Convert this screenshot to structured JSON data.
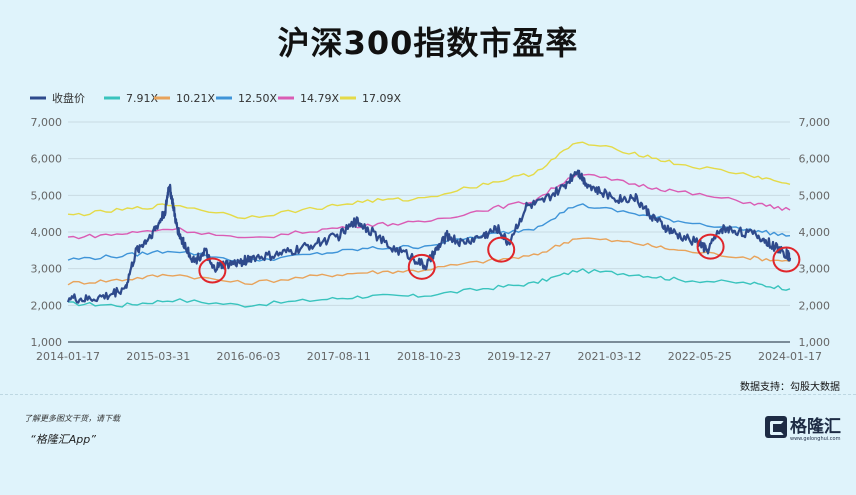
{
  "title": "沪深300指数市盈率",
  "source": "数据支持：勾股大数据",
  "promo_line1": "了解更多图文干货，请下载",
  "promo_line2": "“格隆汇App”",
  "logo": {
    "name": "格隆汇",
    "sub": "www.gelonghui.com"
  },
  "chart_data": {
    "type": "line",
    "ylim": [
      1000,
      7000
    ],
    "yticks": [
      "1,000",
      "2,000",
      "3,000",
      "4,000",
      "5,000",
      "6,000",
      "7,000"
    ],
    "xticks": [
      "2014-01-17",
      "2015-03-31",
      "2016-06-03",
      "2017-08-11",
      "2018-10-23",
      "2019-12-27",
      "2021-03-12",
      "2022-05-25",
      "2024-01-17"
    ],
    "xlim": [
      2014.05,
      2024.05
    ],
    "legend_position": "top-left",
    "grid": true,
    "colors": {
      "收盘价": "#2e4a8c",
      "7.91X": "#39c3bd",
      "10.21X": "#e8a35b",
      "12.50X": "#3f94d8",
      "14.79X": "#da5cb4",
      "17.09X": "#e4da48",
      "circle": "#e0262b"
    },
    "series": [
      {
        "name": "收盘价",
        "x": [
          2014.05,
          2014.3,
          2014.6,
          2014.85,
          2015.0,
          2015.15,
          2015.3,
          2015.4,
          2015.45,
          2015.5,
          2015.55,
          2015.6,
          2015.65,
          2015.8,
          2015.95,
          2016.05,
          2016.2,
          2016.4,
          2016.6,
          2016.9,
          2017.2,
          2017.5,
          2017.8,
          2018.05,
          2018.2,
          2018.5,
          2018.8,
          2019.0,
          2019.15,
          2019.3,
          2019.5,
          2019.8,
          2020.0,
          2020.15,
          2020.4,
          2020.6,
          2020.9,
          2021.1,
          2021.2,
          2021.4,
          2021.7,
          2021.9,
          2022.1,
          2022.3,
          2022.5,
          2022.8,
          2022.9,
          2023.1,
          2023.3,
          2023.6,
          2023.8,
          2024.0,
          2024.05
        ],
        "values": [
          2200,
          2150,
          2250,
          2500,
          3500,
          3800,
          4200,
          4600,
          5300,
          4800,
          4200,
          3900,
          3700,
          3200,
          3500,
          3000,
          3100,
          3150,
          3300,
          3350,
          3500,
          3700,
          3900,
          4300,
          4100,
          3600,
          3350,
          3050,
          3500,
          3900,
          3700,
          3900,
          4100,
          3700,
          4700,
          4800,
          5200,
          5700,
          5400,
          5100,
          4900,
          4950,
          4500,
          4150,
          3900,
          3700,
          3500,
          4100,
          4050,
          3900,
          3650,
          3400,
          3300
        ]
      },
      {
        "name": "7.91X",
        "x": [
          2014.05,
          2014.8,
          2015.5,
          2016.5,
          2017.5,
          2018.2,
          2018.9,
          2019.8,
          2020.5,
          2021.1,
          2021.9,
          2022.5,
          2023.5,
          2024.05
        ],
        "values": [
          2050,
          2000,
          2150,
          2000,
          2150,
          2250,
          2250,
          2450,
          2600,
          2950,
          2850,
          2700,
          2600,
          2450
        ]
      },
      {
        "name": "10.21X",
        "x": [
          2014.05,
          2014.8,
          2015.5,
          2016.5,
          2017.5,
          2018.2,
          2018.9,
          2019.8,
          2020.5,
          2021.1,
          2021.9,
          2022.5,
          2023.5,
          2024.05
        ],
        "values": [
          2600,
          2700,
          2850,
          2600,
          2800,
          2900,
          2950,
          3200,
          3350,
          3850,
          3700,
          3500,
          3300,
          3200
        ]
      },
      {
        "name": "12.50X",
        "x": [
          2014.05,
          2014.8,
          2015.5,
          2016.5,
          2017.5,
          2018.2,
          2018.9,
          2019.8,
          2020.5,
          2021.1,
          2021.9,
          2022.5,
          2023.5,
          2024.05
        ],
        "values": [
          3250,
          3350,
          3500,
          3200,
          3400,
          3550,
          3600,
          3900,
          4100,
          4750,
          4500,
          4300,
          4050,
          3900
        ]
      },
      {
        "name": "14.79X",
        "x": [
          2014.05,
          2014.8,
          2015.5,
          2016.5,
          2017.5,
          2018.2,
          2018.9,
          2019.8,
          2020.5,
          2021.1,
          2021.9,
          2022.5,
          2023.5,
          2024.05
        ],
        "values": [
          3850,
          3950,
          4100,
          3800,
          4050,
          4200,
          4250,
          4600,
          4850,
          5600,
          5300,
          5100,
          4800,
          4600
        ]
      },
      {
        "name": "17.09X",
        "x": [
          2014.05,
          2014.8,
          2015.5,
          2016.5,
          2017.5,
          2018.2,
          2018.9,
          2019.8,
          2020.5,
          2021.1,
          2021.9,
          2022.5,
          2023.5,
          2024.05
        ],
        "values": [
          4450,
          4600,
          4750,
          4400,
          4650,
          4850,
          4900,
          5300,
          5600,
          6450,
          6150,
          5850,
          5550,
          5300
        ]
      }
    ],
    "highlight_circles": [
      {
        "x": 2016.05,
        "y": 2950
      },
      {
        "x": 2018.95,
        "y": 3050
      },
      {
        "x": 2020.05,
        "y": 3520
      },
      {
        "x": 2022.95,
        "y": 3600
      },
      {
        "x": 2024.0,
        "y": 3250
      }
    ]
  }
}
